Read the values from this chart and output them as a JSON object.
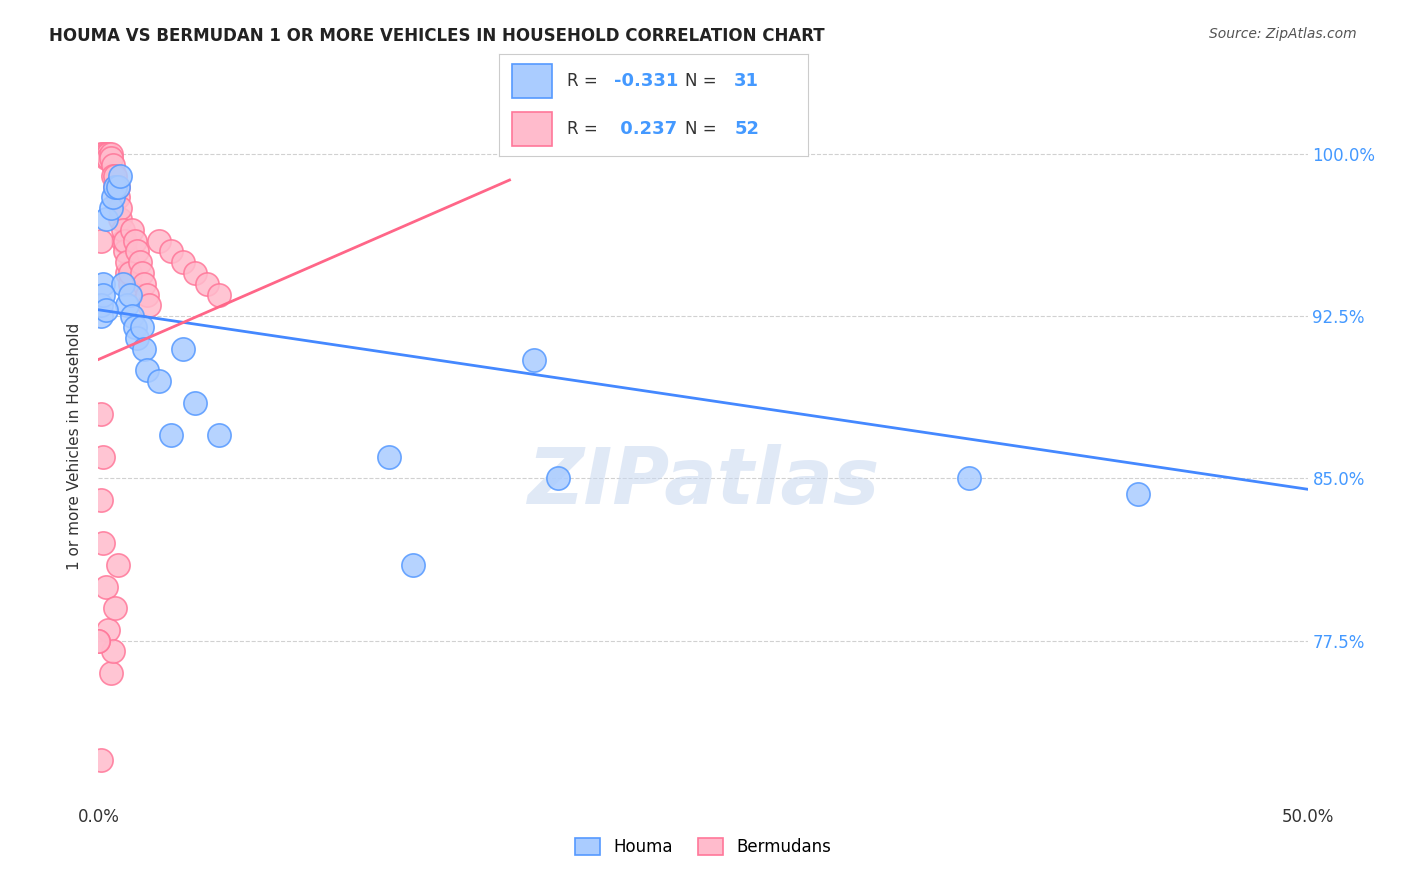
{
  "title": "HOUMA VS BERMUDAN 1 OR MORE VEHICLES IN HOUSEHOLD CORRELATION CHART",
  "source": "Source: ZipAtlas.com",
  "ylabel": "1 or more Vehicles in Household",
  "xlim": [
    0.0,
    0.5
  ],
  "ylim": [
    0.7,
    1.03
  ],
  "yticks": [
    0.775,
    0.85,
    0.925,
    1.0
  ],
  "ytick_labels": [
    "77.5%",
    "85.0%",
    "92.5%",
    "100.0%"
  ],
  "xtick_positions": [
    0.0,
    0.0625,
    0.125,
    0.1875,
    0.25,
    0.3125,
    0.375,
    0.4375,
    0.5
  ],
  "xtick_labels": [
    "0.0%",
    "",
    "",
    "",
    "",
    "",
    "",
    "",
    "50.0%"
  ],
  "houma_R": -0.331,
  "houma_N": 31,
  "bermudans_R": 0.237,
  "bermudans_N": 52,
  "houma_color": "#aaccff",
  "bermudans_color": "#ffbbcc",
  "houma_edge_color": "#5599ff",
  "bermudans_edge_color": "#ff7799",
  "houma_line_color": "#4488ff",
  "bermudans_line_color": "#ff6688",
  "background_color": "#ffffff",
  "watermark": "ZIPatlas",
  "houma_x": [
    0.001,
    0.002,
    0.003,
    0.005,
    0.006,
    0.007,
    0.008,
    0.009,
    0.01,
    0.012,
    0.013,
    0.014,
    0.015,
    0.016,
    0.018,
    0.019,
    0.02,
    0.025,
    0.03,
    0.035,
    0.04,
    0.05,
    0.12,
    0.13,
    0.18,
    0.19,
    0.36,
    0.43,
    0.001,
    0.002,
    0.003
  ],
  "houma_y": [
    0.925,
    0.94,
    0.97,
    0.975,
    0.98,
    0.985,
    0.985,
    0.99,
    0.94,
    0.93,
    0.935,
    0.925,
    0.92,
    0.915,
    0.92,
    0.91,
    0.9,
    0.895,
    0.87,
    0.91,
    0.885,
    0.87,
    0.86,
    0.81,
    0.905,
    0.85,
    0.85,
    0.843,
    0.93,
    0.935,
    0.928
  ],
  "bermudans_x": [
    0.001,
    0.002,
    0.003,
    0.003,
    0.004,
    0.004,
    0.005,
    0.005,
    0.006,
    0.006,
    0.007,
    0.007,
    0.008,
    0.008,
    0.009,
    0.009,
    0.01,
    0.01,
    0.011,
    0.011,
    0.012,
    0.012,
    0.013,
    0.013,
    0.014,
    0.015,
    0.016,
    0.017,
    0.018,
    0.019,
    0.02,
    0.021,
    0.025,
    0.03,
    0.035,
    0.04,
    0.045,
    0.05,
    0.001,
    0.002,
    0.001,
    0.002,
    0.003,
    0.004,
    0.005,
    0.006,
    0.007,
    0.008,
    0.0,
    0.0,
    0.001,
    0.001
  ],
  "bermudans_y": [
    1.0,
    1.0,
    1.0,
    0.998,
    1.0,
    0.998,
    1.0,
    0.998,
    0.995,
    0.99,
    0.99,
    0.985,
    0.98,
    0.985,
    0.97,
    0.975,
    0.96,
    0.965,
    0.955,
    0.96,
    0.945,
    0.95,
    0.94,
    0.945,
    0.965,
    0.96,
    0.955,
    0.95,
    0.945,
    0.94,
    0.935,
    0.93,
    0.96,
    0.955,
    0.95,
    0.945,
    0.94,
    0.935,
    0.88,
    0.86,
    0.84,
    0.82,
    0.8,
    0.78,
    0.76,
    0.77,
    0.79,
    0.81,
    0.775,
    0.775,
    0.72,
    0.96
  ],
  "houma_trend_x": [
    0.0,
    0.5
  ],
  "houma_trend_y": [
    0.928,
    0.845
  ],
  "bermudans_trend_x": [
    0.0,
    0.17
  ],
  "bermudans_trend_y": [
    0.905,
    0.988
  ]
}
